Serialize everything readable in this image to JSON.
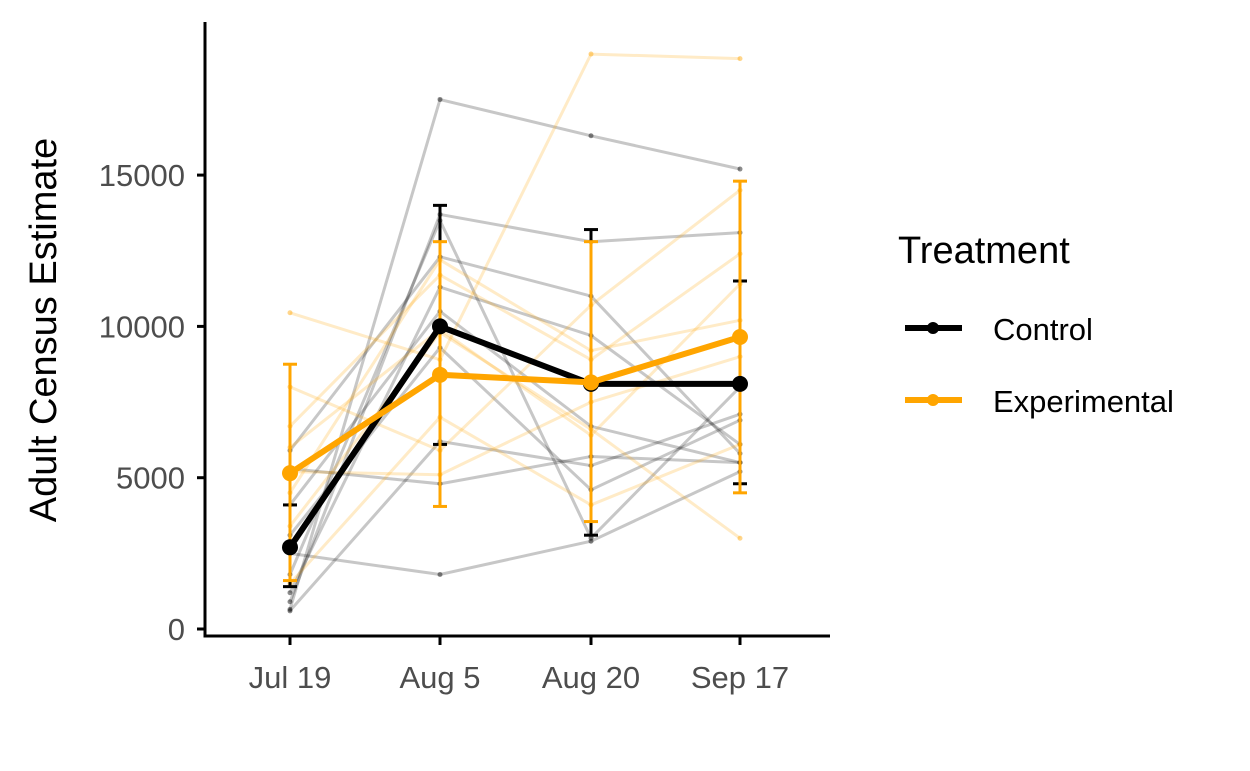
{
  "chart_data": {
    "type": "line",
    "title": "",
    "xlabel": "",
    "ylabel": "Adult Census Estimate",
    "categories": [
      "Jul 19",
      "Aug 5",
      "Aug 20",
      "Sep 17"
    ],
    "yticks": [
      "0",
      "5000",
      "10000",
      "15000"
    ],
    "ylim": [
      0,
      20000
    ],
    "grid": false,
    "legend": {
      "title": "Treatment",
      "position": "right",
      "entries": [
        "Control",
        "Experimental"
      ]
    },
    "colors": {
      "Control": "#000000",
      "Experimental": "#ffa500"
    },
    "series": [
      {
        "name": "Control",
        "values": [
          2700,
          10000,
          8100,
          8100
        ],
        "error_low": [
          1400,
          6100,
          3100,
          4800
        ],
        "error_high": [
          4100,
          14000,
          13200,
          11500
        ]
      },
      {
        "name": "Experimental",
        "values": [
          5150,
          8400,
          8150,
          9650
        ],
        "error_low": [
          1600,
          4050,
          3550,
          4500
        ],
        "error_high": [
          8750,
          12800,
          12800,
          14800
        ]
      }
    ],
    "individual_lines": {
      "Control": [
        [
          650,
          17500,
          16300,
          15200
        ],
        [
          900,
          13700,
          12800,
          13100
        ],
        [
          1800,
          13500,
          3000,
          8000
        ],
        [
          5900,
          12300,
          11000,
          5800
        ],
        [
          1200,
          11300,
          9700,
          6100
        ],
        [
          600,
          6200,
          5400,
          7100
        ],
        [
          5300,
          4800,
          5700,
          5500
        ],
        [
          2500,
          1800,
          2900,
          5200
        ],
        [
          3100,
          9300,
          4600,
          6900
        ],
        [
          4100,
          10500,
          6700,
          5500
        ]
      ],
      "Experimental": [
        [
          10450,
          8900,
          19000,
          18850
        ],
        [
          6700,
          11700,
          8900,
          12400
        ],
        [
          8000,
          5900,
          10700,
          14500
        ],
        [
          3400,
          9800,
          6600,
          3000
        ],
        [
          4500,
          12200,
          9200,
          10200
        ],
        [
          1500,
          7000,
          4100,
          6100
        ],
        [
          5200,
          5100,
          7500,
          9000
        ],
        [
          6000,
          9900,
          6400,
          11400
        ]
      ]
    }
  }
}
